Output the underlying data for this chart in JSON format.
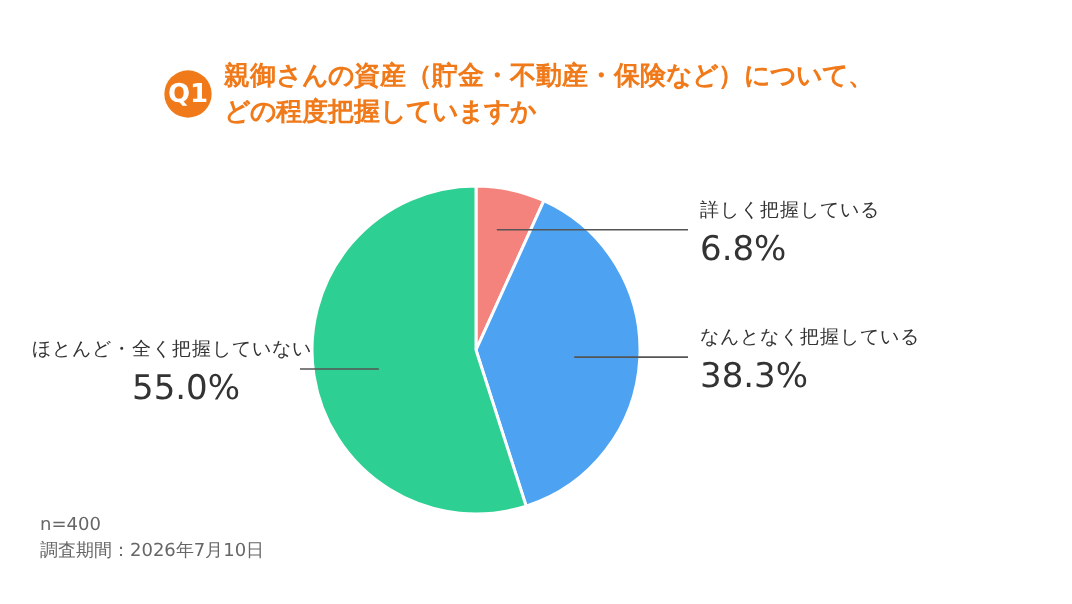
{
  "chart_data": {
    "type": "pie",
    "title": [
      "親御さんの資産（貯金・不動産・保険など）について、",
      "どの程度把握していますか"
    ],
    "categories": [
      "詳しく把握している",
      "なんとなく把握している",
      "ほとんど・全く把握していない"
    ],
    "values": [
      6.8,
      38.3,
      55.0
    ],
    "colors": [
      "#f4837d",
      "#4da3f2",
      "#2ecf93"
    ],
    "value_labels": [
      "6.8%",
      "38.3%",
      "55.0%"
    ],
    "annotations": [
      "Q1",
      "n=400",
      "調査期間：2026年7月10日"
    ]
  }
}
